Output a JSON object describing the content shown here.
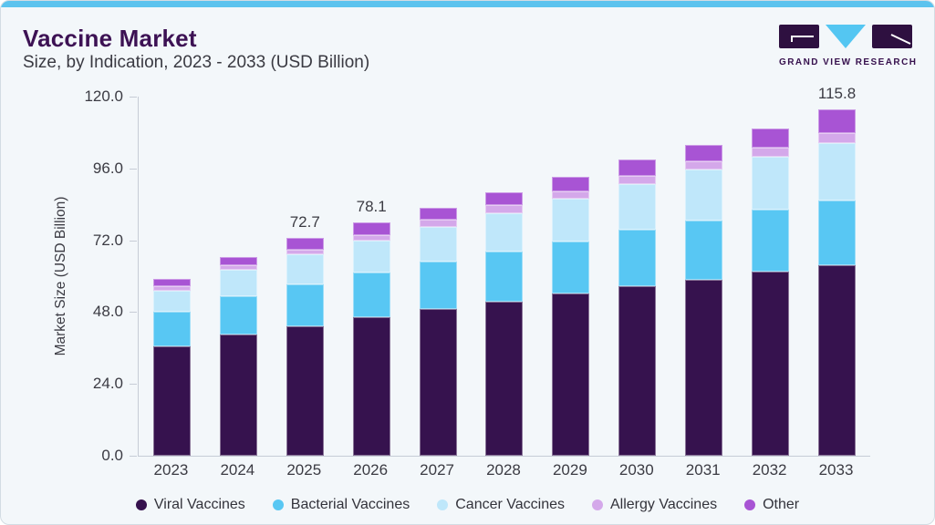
{
  "page": {
    "title": "Vaccine Market",
    "subtitle": "Size, by Indication, 2023 - 2033 (USD Billion)",
    "accent_top_bar_color": "#5cc3ee",
    "background_color": "#f3f7fa"
  },
  "logo": {
    "text": "GRAND VIEW RESEARCH",
    "dark_color": "#2e1040",
    "cyan_color": "#54c6f2"
  },
  "chart_data": {
    "type": "bar",
    "stacked": true,
    "title": "Vaccine Market Size, by Indication, 2023 - 2033 (USD Billion)",
    "ylabel": "Market Size (USD Billion)",
    "ylim": [
      0,
      120
    ],
    "ytick_values": [
      0,
      24,
      48,
      72,
      96,
      120
    ],
    "ytick_labels": [
      "0.0",
      "24.0",
      "48.0",
      "72.0",
      "96.0",
      "120.0"
    ],
    "grid": false,
    "legend_position": "bottom",
    "categories": [
      "2023",
      "2024",
      "2025",
      "2026",
      "2027",
      "2028",
      "2029",
      "2030",
      "2031",
      "2032",
      "2033"
    ],
    "series": [
      {
        "name": "Viral Vaccines",
        "color": "#36124e",
        "values": [
          36.6,
          40.6,
          43.4,
          46.3,
          48.9,
          51.5,
          54.1,
          56.7,
          58.9,
          61.4,
          63.6
        ]
      },
      {
        "name": "Bacterial Vaccines",
        "color": "#58c7f3",
        "values": [
          11.6,
          12.7,
          13.9,
          14.8,
          15.9,
          16.7,
          17.5,
          18.8,
          19.7,
          20.8,
          21.7
        ]
      },
      {
        "name": "Cancer Vaccines",
        "color": "#bfe7fa",
        "values": [
          6.9,
          8.7,
          10.1,
          10.7,
          11.8,
          12.9,
          14.2,
          15.2,
          16.9,
          17.7,
          19.3
        ]
      },
      {
        "name": "Allergy Vaccines",
        "color": "#d4a8ea",
        "values": [
          1.6,
          1.6,
          1.5,
          1.8,
          2.2,
          2.6,
          2.5,
          2.7,
          2.9,
          3.1,
          3.1
        ]
      },
      {
        "name": "Other",
        "color": "#a854d4",
        "values": [
          2.5,
          2.8,
          3.8,
          4.5,
          4.0,
          4.2,
          4.9,
          5.5,
          5.5,
          6.3,
          8.1
        ]
      }
    ],
    "totals": [
      59.2,
      66.4,
      72.7,
      78.1,
      82.8,
      87.9,
      93.2,
      98.9,
      103.9,
      109.3,
      115.8
    ],
    "visible_total_labels": {
      "2025": "72.7",
      "2026": "78.1",
      "2033": "115.8"
    }
  }
}
